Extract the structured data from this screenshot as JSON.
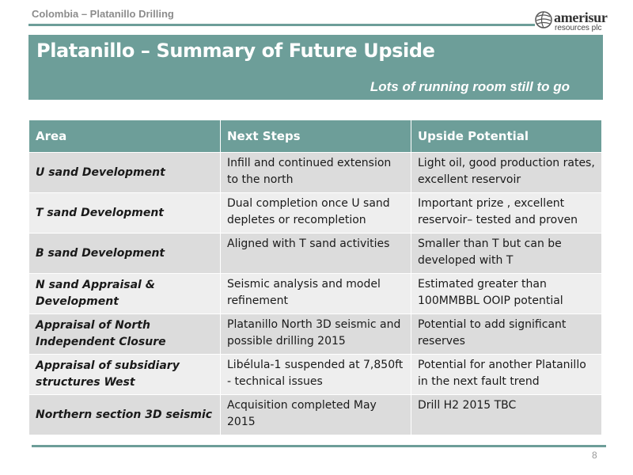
{
  "header": {
    "section_label": "Colombia – Platanillo Drilling",
    "logo_word": "amerisur",
    "logo_sub": "resources plc"
  },
  "banner": {
    "title": "Platanillo – Summary of Future Upside",
    "subtitle": "Lots of running room still to go"
  },
  "table": {
    "headers": [
      "Area",
      "Next Steps",
      "Upside Potential"
    ],
    "rows": [
      {
        "area": "U sand Development",
        "next": "Infill and continued extension to the north",
        "upside": "Light oil, good production rates, excellent reservoir"
      },
      {
        "area": "T sand Development",
        "next": "Dual completion once U sand depletes or recompletion",
        "upside": "Important prize , excellent reservoir– tested and proven"
      },
      {
        "area": "B sand Development",
        "next": "Aligned with T sand activities",
        "upside": "Smaller than T but can be developed with T"
      },
      {
        "area": "N sand Appraisal & Development",
        "next": "Seismic analysis and model refinement",
        "upside": "Estimated greater than 100MMBBL OOIP potential"
      },
      {
        "area": "Appraisal of North Independent Closure",
        "next": "Platanillo North 3D seismic and possible drilling 2015",
        "upside": "Potential to add significant reserves"
      },
      {
        "area": "Appraisal of subsidiary structures West",
        "next": "Libélula-1 suspended at 7,850ft  - technical issues",
        "upside": "Potential for another Platanillo in the next fault trend"
      },
      {
        "area": "Northern section 3D seismic",
        "next": "Acquisition completed May 2015",
        "upside": "Drill H2 2015 TBC"
      }
    ]
  },
  "footer": {
    "page_number": "8"
  },
  "colors": {
    "accent": "#6d9e99",
    "row_odd": "#dcdcdc",
    "row_even": "#eeeeee"
  }
}
